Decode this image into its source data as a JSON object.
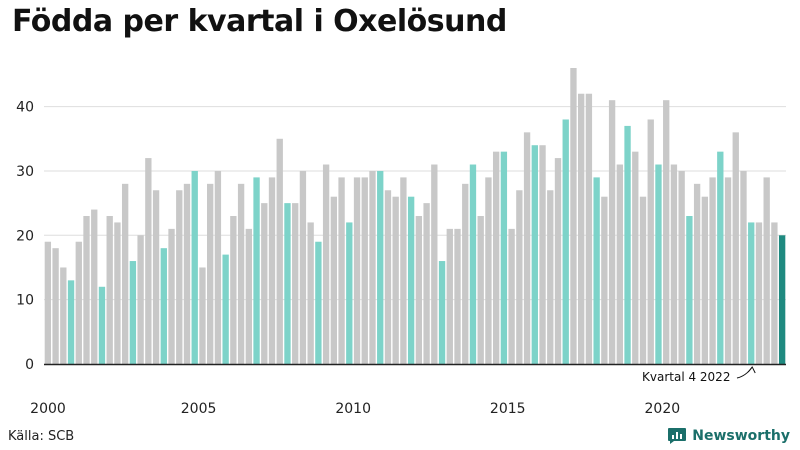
{
  "title": "Födda per kvartal i Oxelösund",
  "source": "Källa: SCB",
  "brand": {
    "name": "Newsworthy",
    "icon": "newsworthy-logo-icon"
  },
  "colors": {
    "default": "#c8c8c8",
    "quarter4": "#7dd3c9",
    "latest": "#1f8a80",
    "axis": "#222222",
    "grid": "#dedede"
  },
  "chart_data": {
    "type": "bar",
    "title": "Födda per kvartal i Oxelösund",
    "xlabel": "",
    "ylabel": "",
    "ylim": [
      0,
      46
    ],
    "yticks": [
      0,
      10,
      20,
      30,
      40
    ],
    "xtick_labels": [
      "2000",
      "2005",
      "2010",
      "2015",
      "2020"
    ],
    "grid": true,
    "start_year": 2000,
    "values": [
      19,
      18,
      15,
      13,
      19,
      23,
      24,
      12,
      23,
      22,
      28,
      16,
      20,
      32,
      27,
      18,
      21,
      27,
      28,
      30,
      15,
      28,
      30,
      17,
      23,
      28,
      21,
      29,
      25,
      29,
      35,
      25,
      25,
      30,
      22,
      19,
      31,
      26,
      29,
      22,
      29,
      29,
      30,
      30,
      27,
      26,
      29,
      26,
      23,
      25,
      31,
      16,
      21,
      21,
      28,
      31,
      23,
      29,
      33,
      33,
      21,
      27,
      36,
      34,
      34,
      27,
      32,
      38,
      46,
      42,
      42,
      29,
      26,
      41,
      31,
      37,
      33,
      26,
      38,
      31,
      41,
      31,
      30,
      23,
      28,
      26,
      29,
      33,
      29,
      36,
      30,
      22,
      22,
      29,
      22,
      20
    ],
    "annotation": "Kvartal 4 2022"
  }
}
